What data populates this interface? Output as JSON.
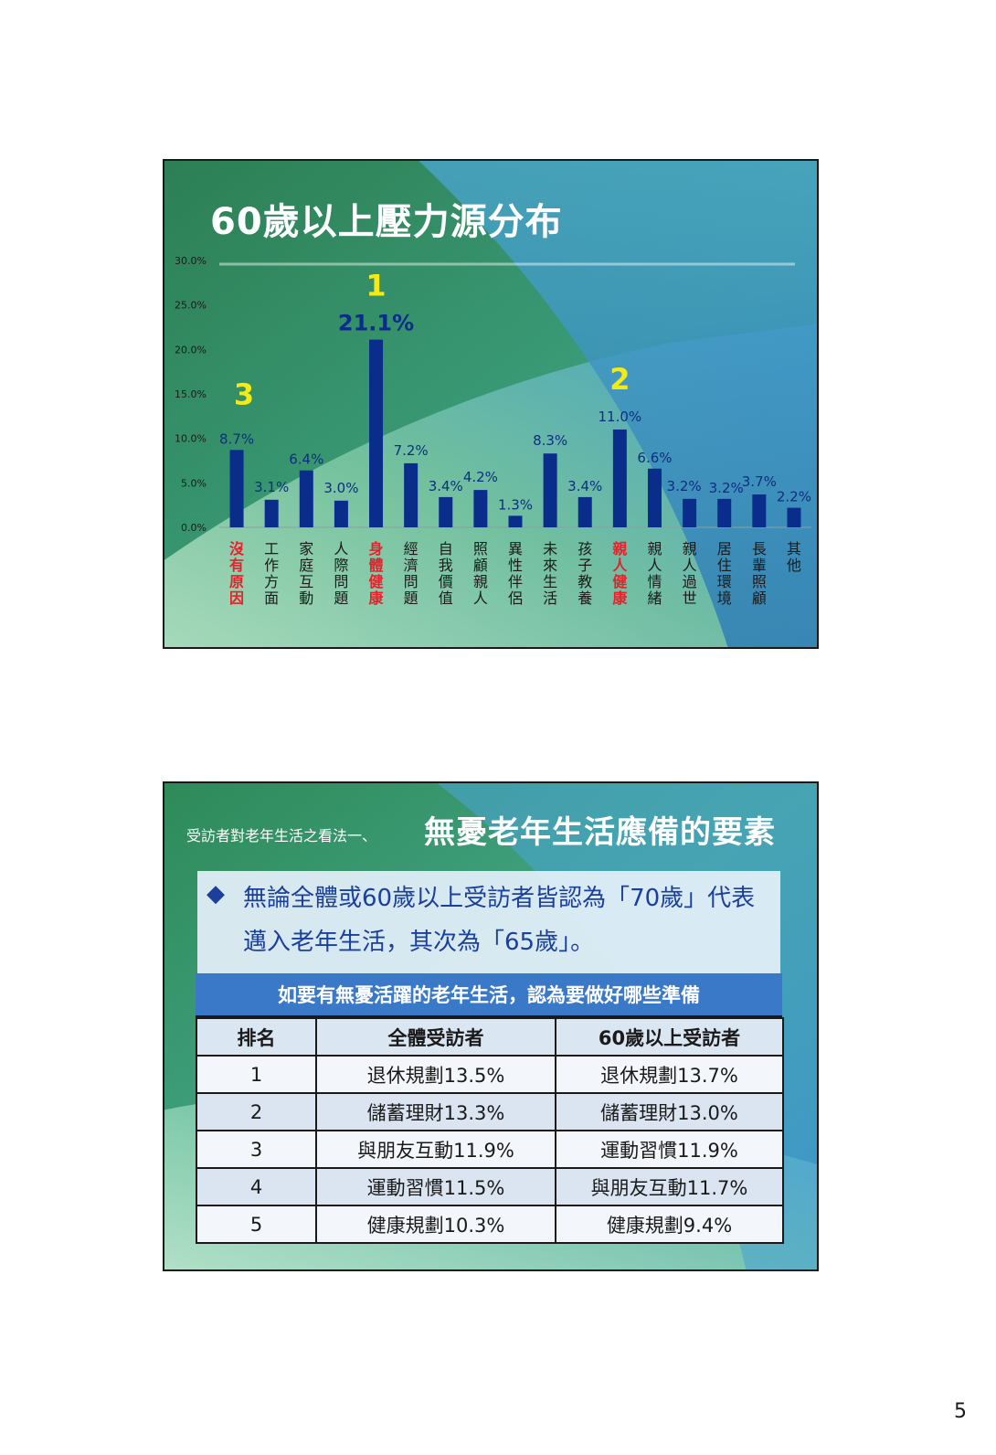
{
  "page": {
    "number": "5"
  },
  "slide1": {
    "title": "60歲以上壓力源分布"
  },
  "chart_data": {
    "type": "bar",
    "title": "60歲以上壓力源分布",
    "categories": [
      "沒有原因",
      "工作方面",
      "家庭互動",
      "人際問題",
      "身體健康",
      "經濟問題",
      "自我價值",
      "照顧親人",
      "異性伴侶",
      "未來生活",
      "孩子教養",
      "親人健康",
      "親人情緒",
      "親人過世",
      "居住環境",
      "長輩照顧",
      "其他"
    ],
    "values": [
      8.7,
      3.1,
      6.4,
      3.0,
      21.1,
      7.2,
      3.4,
      4.2,
      1.3,
      8.3,
      3.4,
      11.0,
      6.6,
      3.2,
      3.2,
      3.7,
      2.2
    ],
    "value_labels": [
      "8.7%",
      "3.1%",
      "6.4%",
      "3.0%",
      "21.1%",
      "7.2%",
      "3.4%",
      "4.2%",
      "1.3%",
      "8.3%",
      "3.4%",
      "11.0%",
      "6.6%",
      "3.2%",
      "3.2%",
      "3.7%",
      "2.2%"
    ],
    "highlighted_categories": [
      "沒有原因",
      "身體健康",
      "親人健康"
    ],
    "rank_markers": [
      {
        "category": "身體健康",
        "label": "1"
      },
      {
        "category": "親人健康",
        "label": "2"
      },
      {
        "category": "沒有原因",
        "label": "3"
      }
    ],
    "yticks": [
      "0.0%",
      "5.0%",
      "10.0%",
      "15.0%",
      "20.0%",
      "25.0%",
      "30.0%"
    ],
    "ylim": [
      0,
      30
    ],
    "xlabel": "",
    "ylabel": "",
    "grid": false,
    "legend": "none",
    "bar_color": "#0a2d8c",
    "highlight_text_color": "#e8202a",
    "marker_color": "#f5ea14",
    "emphasis_label_color": "#0a2d8c"
  },
  "slide2": {
    "subtitle": "受訪者對老年生活之看法一、",
    "title": "無憂老年生活應備的要素",
    "bullet_symbol": "◆",
    "bullet_text": "無論全體或60歲以上受訪者皆認為「70歲」代表邁入老年生活，其次為「65歲」。",
    "table": {
      "header": "如要有無憂活躍的老年生活，認為要做好哪些準備",
      "columns": [
        "排名",
        "全體受訪者",
        "60歲以上受訪者"
      ],
      "rows": [
        {
          "rank": "1",
          "all": "退休規劃13.5%",
          "over60": "退休規劃13.7%"
        },
        {
          "rank": "2",
          "all": "儲蓄理財13.3%",
          "over60": "儲蓄理財13.0%"
        },
        {
          "rank": "3",
          "all": "與朋友互動11.9%",
          "over60": "運動習慣11.9%"
        },
        {
          "rank": "4",
          "all": "運動習慣11.5%",
          "over60": "與朋友互動11.7%"
        },
        {
          "rank": "5",
          "all": "健康規劃10.3%",
          "over60": "健康規劃9.4%"
        }
      ]
    }
  },
  "colors": {
    "slide_green": "#2d8f5a",
    "slide_blue": "#3a8fc8",
    "table_header_bg": "#3a78c8",
    "bullet_text": "#1b3f9c"
  }
}
